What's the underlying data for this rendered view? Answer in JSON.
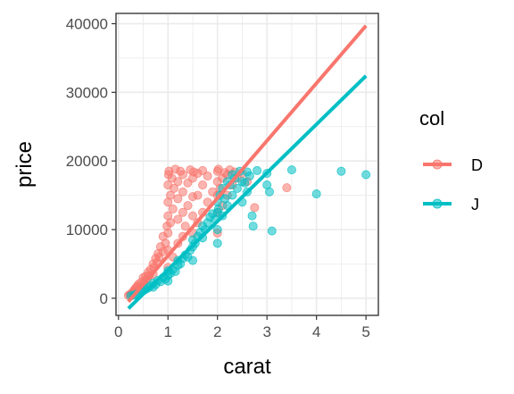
{
  "chart_data": {
    "type": "scatter",
    "title": "",
    "xlabel": "carat",
    "ylabel": "price",
    "xlim": [
      -0.05,
      5.25
    ],
    "ylim": [
      -2500,
      41500
    ],
    "x_ticks": [
      0,
      1,
      2,
      3,
      4,
      5
    ],
    "y_ticks": [
      0,
      10000,
      20000,
      30000,
      40000
    ],
    "x_tick_labels": [
      "0",
      "1",
      "2",
      "3",
      "4",
      "5"
    ],
    "y_tick_labels": [
      "0",
      "10000",
      "20000",
      "30000",
      "40000"
    ],
    "grid": true,
    "legend": {
      "title": "col",
      "placement": "right"
    },
    "series": [
      {
        "name": "D",
        "color": "#F8766D",
        "points": [
          [
            0.2,
            400
          ],
          [
            0.23,
            500
          ],
          [
            0.25,
            650
          ],
          [
            0.28,
            750
          ],
          [
            0.3,
            900
          ],
          [
            0.31,
            1100
          ],
          [
            0.33,
            1300
          ],
          [
            0.35,
            1500
          ],
          [
            0.38,
            1700
          ],
          [
            0.4,
            2000
          ],
          [
            0.42,
            1500
          ],
          [
            0.45,
            2300
          ],
          [
            0.5,
            1900
          ],
          [
            0.5,
            3000
          ],
          [
            0.52,
            2500
          ],
          [
            0.55,
            3200
          ],
          [
            0.58,
            2800
          ],
          [
            0.6,
            3800
          ],
          [
            0.62,
            3300
          ],
          [
            0.65,
            4200
          ],
          [
            0.7,
            3500
          ],
          [
            0.7,
            5000
          ],
          [
            0.72,
            4500
          ],
          [
            0.75,
            5800
          ],
          [
            0.78,
            5200
          ],
          [
            0.8,
            6500
          ],
          [
            0.82,
            6000
          ],
          [
            0.85,
            7500
          ],
          [
            0.9,
            6800
          ],
          [
            0.9,
            9000
          ],
          [
            0.95,
            8000
          ],
          [
            0.98,
            10500
          ],
          [
            1.0,
            4500
          ],
          [
            1.0,
            7000
          ],
          [
            1.0,
            9500
          ],
          [
            1.0,
            12000
          ],
          [
            1.0,
            14000
          ],
          [
            1.0,
            16500
          ],
          [
            1.01,
            18000
          ],
          [
            1.02,
            18500
          ],
          [
            1.05,
            11000
          ],
          [
            1.05,
            15000
          ],
          [
            1.08,
            17500
          ],
          [
            1.1,
            6000
          ],
          [
            1.1,
            13000
          ],
          [
            1.12,
            16000
          ],
          [
            1.15,
            18800
          ],
          [
            1.2,
            8000
          ],
          [
            1.2,
            11500
          ],
          [
            1.2,
            14500
          ],
          [
            1.2,
            17000
          ],
          [
            1.25,
            18500
          ],
          [
            1.3,
            9000
          ],
          [
            1.3,
            12500
          ],
          [
            1.3,
            15500
          ],
          [
            1.3,
            18000
          ],
          [
            1.35,
            10500
          ],
          [
            1.4,
            13500
          ],
          [
            1.4,
            16800
          ],
          [
            1.45,
            18700
          ],
          [
            1.5,
            9500
          ],
          [
            1.5,
            12000
          ],
          [
            1.5,
            14800
          ],
          [
            1.5,
            17500
          ],
          [
            1.52,
            18400
          ],
          [
            1.6,
            11000
          ],
          [
            1.6,
            15000
          ],
          [
            1.6,
            18200
          ],
          [
            1.7,
            12500
          ],
          [
            1.7,
            16500
          ],
          [
            1.7,
            18600
          ],
          [
            1.8,
            14000
          ],
          [
            1.8,
            17800
          ],
          [
            1.9,
            15500
          ],
          [
            2.0,
            9500
          ],
          [
            2.0,
            12500
          ],
          [
            2.0,
            15000
          ],
          [
            2.0,
            17000
          ],
          [
            2.0,
            18500
          ],
          [
            2.02,
            18800
          ],
          [
            2.05,
            16000
          ],
          [
            2.1,
            13500
          ],
          [
            2.1,
            17500
          ],
          [
            2.15,
            18300
          ],
          [
            2.2,
            15000
          ],
          [
            2.2,
            18000
          ],
          [
            2.25,
            18700
          ],
          [
            2.3,
            16500
          ],
          [
            2.35,
            18400
          ],
          [
            2.4,
            17500
          ],
          [
            2.5,
            18200
          ],
          [
            2.6,
            17000
          ],
          [
            2.75,
            13200
          ],
          [
            3.4,
            16100
          ]
        ]
      },
      {
        "name": "J",
        "color": "#00BFC4",
        "points": [
          [
            0.25,
            350
          ],
          [
            0.3,
            450
          ],
          [
            0.35,
            550
          ],
          [
            0.4,
            700
          ],
          [
            0.45,
            900
          ],
          [
            0.5,
            1100
          ],
          [
            0.55,
            1300
          ],
          [
            0.6,
            1500
          ],
          [
            0.65,
            1800
          ],
          [
            0.7,
            1600
          ],
          [
            0.7,
            2200
          ],
          [
            0.75,
            2000
          ],
          [
            0.8,
            2600
          ],
          [
            0.85,
            2400
          ],
          [
            0.9,
            3000
          ],
          [
            0.95,
            2800
          ],
          [
            1.0,
            2500
          ],
          [
            1.0,
            3300
          ],
          [
            1.0,
            4000
          ],
          [
            1.05,
            3600
          ],
          [
            1.1,
            4200
          ],
          [
            1.15,
            3900
          ],
          [
            1.2,
            4800
          ],
          [
            1.2,
            5500
          ],
          [
            1.25,
            5000
          ],
          [
            1.3,
            5800
          ],
          [
            1.35,
            6300
          ],
          [
            1.4,
            6000
          ],
          [
            1.45,
            7000
          ],
          [
            1.5,
            5500
          ],
          [
            1.5,
            7500
          ],
          [
            1.5,
            8500
          ],
          [
            1.55,
            8000
          ],
          [
            1.6,
            9000
          ],
          [
            1.65,
            9600
          ],
          [
            1.7,
            8800
          ],
          [
            1.7,
            10500
          ],
          [
            1.75,
            10000
          ],
          [
            1.8,
            11000
          ],
          [
            1.85,
            11800
          ],
          [
            1.9,
            12300
          ],
          [
            1.95,
            11500
          ],
          [
            2.0,
            8000
          ],
          [
            2.0,
            10000
          ],
          [
            2.0,
            12500
          ],
          [
            2.0,
            14000
          ],
          [
            2.02,
            13000
          ],
          [
            2.05,
            15000
          ],
          [
            2.1,
            12000
          ],
          [
            2.1,
            16000
          ],
          [
            2.15,
            14500
          ],
          [
            2.2,
            13500
          ],
          [
            2.2,
            17000
          ],
          [
            2.25,
            16500
          ],
          [
            2.3,
            15000
          ],
          [
            2.3,
            18000
          ],
          [
            2.35,
            17500
          ],
          [
            2.4,
            16000
          ],
          [
            2.45,
            18500
          ],
          [
            2.5,
            14000
          ],
          [
            2.5,
            17000
          ],
          [
            2.55,
            16800
          ],
          [
            2.6,
            15500
          ],
          [
            2.6,
            18400
          ],
          [
            2.65,
            17800
          ],
          [
            2.7,
            12000
          ],
          [
            2.72,
            10500
          ],
          [
            2.8,
            18600
          ],
          [
            3.0,
            16500
          ],
          [
            3.0,
            18200
          ],
          [
            3.05,
            15500
          ],
          [
            3.1,
            9800
          ],
          [
            3.5,
            18700
          ],
          [
            4.0,
            15200
          ],
          [
            4.5,
            18500
          ],
          [
            5.0,
            18000
          ]
        ]
      }
    ],
    "trend_lines": [
      {
        "name": "D",
        "color": "#F8766D",
        "x": [
          0.2,
          5.0
        ],
        "y": [
          -500,
          39700
        ]
      },
      {
        "name": "J",
        "color": "#00BFC4",
        "x": [
          0.2,
          5.0
        ],
        "y": [
          -1500,
          32400
        ]
      }
    ]
  }
}
